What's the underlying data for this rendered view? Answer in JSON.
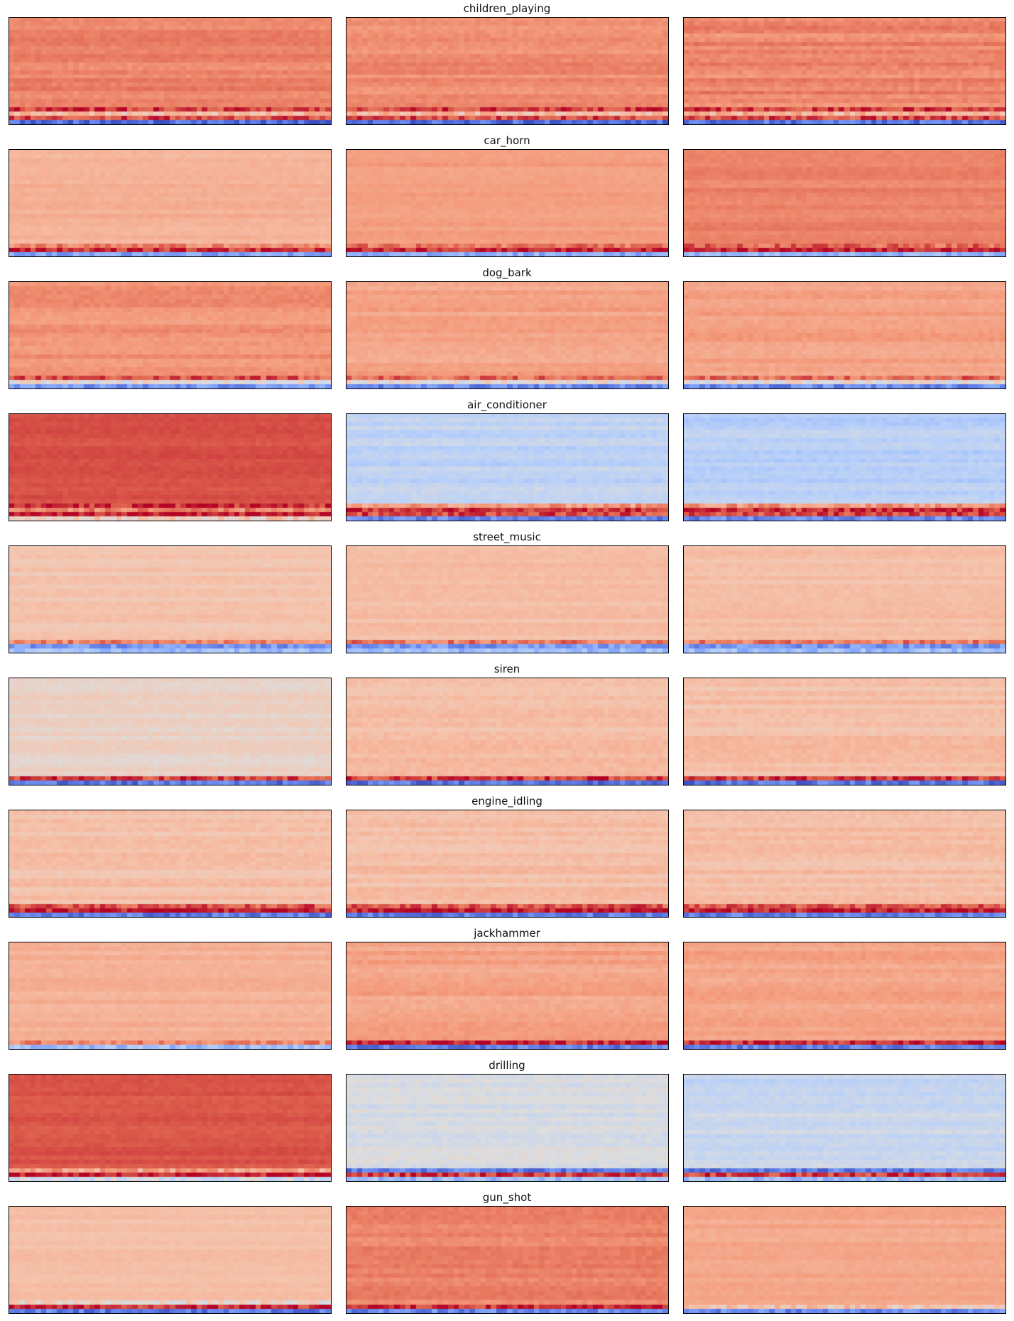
{
  "chart_data": {
    "type": "heatmap",
    "description_of_layout": "grid of 10 rows x 3 columns of MFCC-style heatmaps, one title per row",
    "colormap": "coolwarm",
    "rows": [
      {
        "title": "children_playing",
        "panels": [
          {
            "mean": 0.8,
            "variation": 0.04,
            "bottom_bands": [
              0.92,
              0.65,
              0.9,
              0.08
            ]
          },
          {
            "mean": 0.78,
            "variation": 0.04,
            "bottom_bands": [
              0.92,
              0.65,
              0.9,
              0.08
            ]
          },
          {
            "mean": 0.79,
            "variation": 0.05,
            "bottom_bands": [
              0.92,
              0.68,
              0.9,
              0.1
            ]
          }
        ]
      },
      {
        "title": "car_horn",
        "panels": [
          {
            "mean": 0.68,
            "variation": 0.03,
            "bottom_bands": [
              0.8,
              0.95,
              0.22
            ]
          },
          {
            "mean": 0.74,
            "variation": 0.03,
            "bottom_bands": [
              0.82,
              0.96,
              0.25
            ]
          },
          {
            "mean": 0.8,
            "variation": 0.03,
            "bottom_bands": [
              0.85,
              0.97,
              0.28
            ]
          }
        ]
      },
      {
        "title": "dog_bark",
        "panels": [
          {
            "mean": 0.76,
            "variation": 0.04,
            "bottom_bands": [
              0.88,
              0.52,
              0.18
            ]
          },
          {
            "mean": 0.72,
            "variation": 0.04,
            "bottom_bands": [
              0.85,
              0.52,
              0.15
            ]
          },
          {
            "mean": 0.72,
            "variation": 0.04,
            "bottom_bands": [
              0.85,
              0.52,
              0.15
            ]
          }
        ]
      },
      {
        "title": "air_conditioner",
        "panels": [
          {
            "mean": 0.9,
            "variation": 0.02,
            "bottom_bands": [
              0.95,
              0.8,
              0.98,
              0.6
            ]
          },
          {
            "mean": 0.4,
            "variation": 0.05,
            "bottom_bands": [
              0.75,
              0.95,
              0.9,
              0.15
            ]
          },
          {
            "mean": 0.38,
            "variation": 0.05,
            "bottom_bands": [
              0.75,
              0.95,
              0.9,
              0.15
            ]
          }
        ]
      },
      {
        "title": "street_music",
        "panels": [
          {
            "mean": 0.62,
            "variation": 0.03,
            "bottom_bands": [
              0.8,
              0.18,
              0.3
            ]
          },
          {
            "mean": 0.64,
            "variation": 0.03,
            "bottom_bands": [
              0.82,
              0.18,
              0.3
            ]
          },
          {
            "mean": 0.64,
            "variation": 0.03,
            "bottom_bands": [
              0.82,
              0.18,
              0.3
            ]
          }
        ]
      },
      {
        "title": "siren",
        "panels": [
          {
            "mean": 0.56,
            "variation": 0.04,
            "bottom_bands": [
              0.92,
              0.1
            ]
          },
          {
            "mean": 0.64,
            "variation": 0.04,
            "bottom_bands": [
              0.92,
              0.1
            ]
          },
          {
            "mean": 0.64,
            "variation": 0.04,
            "bottom_bands": [
              0.92,
              0.1
            ]
          }
        ]
      },
      {
        "title": "engine_idling",
        "panels": [
          {
            "mean": 0.64,
            "variation": 0.04,
            "bottom_bands": [
              0.88,
              0.98,
              0.12
            ]
          },
          {
            "mean": 0.64,
            "variation": 0.04,
            "bottom_bands": [
              0.88,
              0.98,
              0.12
            ]
          },
          {
            "mean": 0.64,
            "variation": 0.04,
            "bottom_bands": [
              0.88,
              0.98,
              0.12
            ]
          }
        ]
      },
      {
        "title": "jackhammer",
        "panels": [
          {
            "mean": 0.68,
            "variation": 0.03,
            "bottom_bands": [
              0.8,
              0.3
            ]
          },
          {
            "mean": 0.72,
            "variation": 0.04,
            "bottom_bands": [
              0.95,
              0.12
            ]
          },
          {
            "mean": 0.72,
            "variation": 0.04,
            "bottom_bands": [
              0.95,
              0.12
            ]
          }
        ]
      },
      {
        "title": "drilling",
        "panels": [
          {
            "mean": 0.89,
            "variation": 0.02,
            "bottom_bands": [
              0.72,
              0.98,
              0.45
            ]
          },
          {
            "mean": 0.47,
            "variation": 0.05,
            "bottom_bands": [
              0.12,
              0.92,
              0.3
            ]
          },
          {
            "mean": 0.43,
            "variation": 0.05,
            "bottom_bands": [
              0.12,
              0.92,
              0.3
            ]
          }
        ]
      },
      {
        "title": "gun_shot",
        "panels": [
          {
            "mean": 0.64,
            "variation": 0.02,
            "bottom_bands": [
              0.55,
              0.95,
              0.12
            ]
          },
          {
            "mean": 0.8,
            "variation": 0.04,
            "bottom_bands": [
              0.95,
              0.15
            ]
          },
          {
            "mean": 0.71,
            "variation": 0.03,
            "bottom_bands": [
              0.62,
              0.15
            ]
          }
        ]
      }
    ]
  }
}
